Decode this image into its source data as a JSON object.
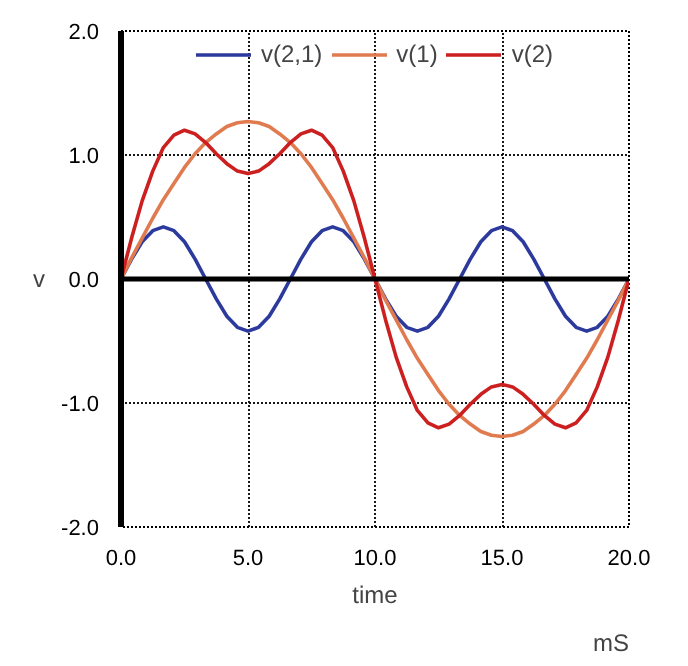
{
  "chart_data": {
    "type": "line",
    "xlabel": "time",
    "ylabel": "v",
    "annotations": [
      "mS"
    ],
    "x": [
      0,
      0.417,
      0.833,
      1.25,
      1.667,
      2.083,
      2.5,
      2.917,
      3.333,
      3.75,
      4.167,
      4.583,
      5,
      5.417,
      5.833,
      6.25,
      6.667,
      7.083,
      7.5,
      7.917,
      8.333,
      8.75,
      9.167,
      9.583,
      10,
      10.417,
      10.833,
      11.25,
      11.667,
      12.083,
      12.5,
      12.917,
      13.333,
      13.75,
      14.167,
      14.583,
      15,
      15.417,
      15.833,
      16.25,
      16.667,
      17.083,
      17.5,
      17.917,
      18.333,
      18.75,
      19.167,
      19.583,
      20
    ],
    "series": [
      {
        "name": "v(2,1)",
        "color": "#2b3a9c",
        "values": [
          0,
          0.16,
          0.3,
          0.39,
          0.42,
          0.39,
          0.3,
          0.16,
          0,
          -0.16,
          -0.3,
          -0.39,
          -0.42,
          -0.39,
          -0.3,
          -0.16,
          0,
          0.16,
          0.3,
          0.39,
          0.42,
          0.39,
          0.3,
          0.16,
          0,
          -0.16,
          -0.3,
          -0.39,
          -0.42,
          -0.39,
          -0.3,
          -0.16,
          0,
          0.16,
          0.3,
          0.39,
          0.42,
          0.39,
          0.3,
          0.16,
          0,
          -0.16,
          -0.3,
          -0.39,
          -0.42,
          -0.39,
          -0.3,
          -0.16,
          0
        ]
      },
      {
        "name": "v(1)",
        "color": "#e07b50",
        "values": [
          0,
          0.17,
          0.33,
          0.49,
          0.64,
          0.77,
          0.9,
          1.01,
          1.1,
          1.17,
          1.23,
          1.26,
          1.27,
          1.26,
          1.23,
          1.17,
          1.1,
          1.01,
          0.9,
          0.77,
          0.64,
          0.49,
          0.33,
          0.17,
          0,
          -0.17,
          -0.33,
          -0.49,
          -0.64,
          -0.77,
          -0.9,
          -1.01,
          -1.1,
          -1.17,
          -1.23,
          -1.26,
          -1.27,
          -1.26,
          -1.23,
          -1.17,
          -1.1,
          -1.01,
          -0.9,
          -0.77,
          -0.64,
          -0.49,
          -0.33,
          -0.17,
          0
        ]
      },
      {
        "name": "v(2)",
        "color": "#cc1f1f",
        "values": [
          0,
          0.33,
          0.63,
          0.87,
          1.06,
          1.16,
          1.2,
          1.17,
          1.1,
          1.01,
          0.93,
          0.87,
          0.85,
          0.87,
          0.93,
          1.01,
          1.1,
          1.17,
          1.2,
          1.16,
          1.06,
          0.87,
          0.63,
          0.33,
          0,
          -0.33,
          -0.63,
          -0.87,
          -1.06,
          -1.16,
          -1.2,
          -1.17,
          -1.1,
          -1.01,
          -0.93,
          -0.87,
          -0.85,
          -0.87,
          -0.93,
          -1.01,
          -1.1,
          -1.17,
          -1.2,
          -1.16,
          -1.06,
          -0.87,
          -0.63,
          -0.33,
          0
        ]
      }
    ],
    "xlim": [
      0,
      20
    ],
    "ylim": [
      -2,
      2
    ],
    "xticks": [
      {
        "value": 0,
        "label": "0.0"
      },
      {
        "value": 5,
        "label": "5.0"
      },
      {
        "value": 10,
        "label": "10.0"
      },
      {
        "value": 15,
        "label": "15.0"
      },
      {
        "value": 20,
        "label": "20.0"
      }
    ],
    "yticks": [
      {
        "value": -2,
        "label": "-2.0"
      },
      {
        "value": -1,
        "label": "-1.0"
      },
      {
        "value": 0,
        "label": "0.0"
      },
      {
        "value": 1,
        "label": "1.0"
      },
      {
        "value": 2,
        "label": "2.0"
      }
    ],
    "ref_lines": [
      {
        "axis": "y",
        "value": 0,
        "color": "#000000"
      }
    ],
    "grid": true,
    "legend": "top",
    "line_style": "solid"
  }
}
